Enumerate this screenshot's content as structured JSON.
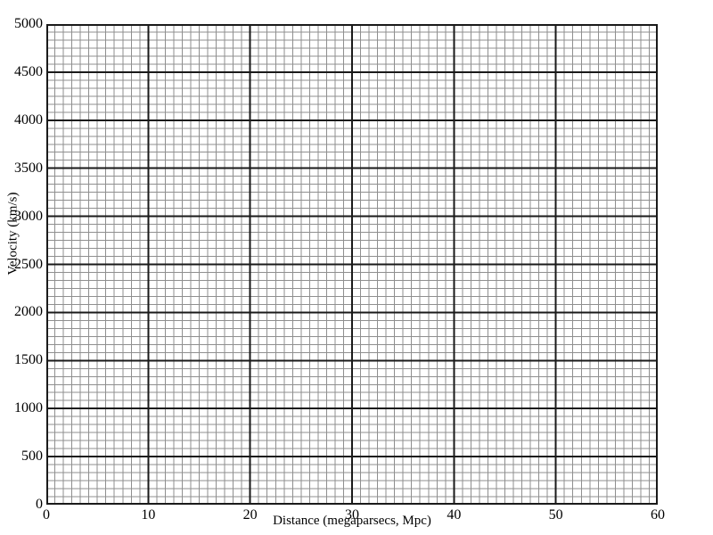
{
  "figure": {
    "kind": "blank-graph-sheet"
  },
  "chart_data": {
    "type": "scatter",
    "title": "",
    "xlabel": "Distance (megaparsecs, Mpc)",
    "ylabel": "Velocity (km/s)",
    "xlim": [
      0,
      60
    ],
    "ylim": [
      0,
      5000
    ],
    "x_tick_values": [
      0,
      10,
      20,
      30,
      40,
      50,
      60
    ],
    "x_tick_labels": [
      "0",
      "10",
      "20",
      "30",
      "40",
      "50",
      "60"
    ],
    "y_tick_values": [
      0,
      500,
      1000,
      1500,
      2000,
      2500,
      3000,
      3500,
      4000,
      4500,
      5000
    ],
    "y_tick_labels": [
      "0",
      "500",
      "1000",
      "1500",
      "2000",
      "2500",
      "3000",
      "3500",
      "4000",
      "4500",
      "5000"
    ],
    "x_major_step": 10,
    "y_major_step": 500,
    "x_minor_divisions_per_major": 12,
    "y_minor_divisions_per_major": 6,
    "grid": "on",
    "legend": "none",
    "series": [],
    "colors": {
      "background": "#ffffff",
      "minor_grid": "#8f8f8f",
      "major_grid": "#1a1a1a",
      "axis_border": "#1a1a1a",
      "label_text": "#000000"
    }
  }
}
